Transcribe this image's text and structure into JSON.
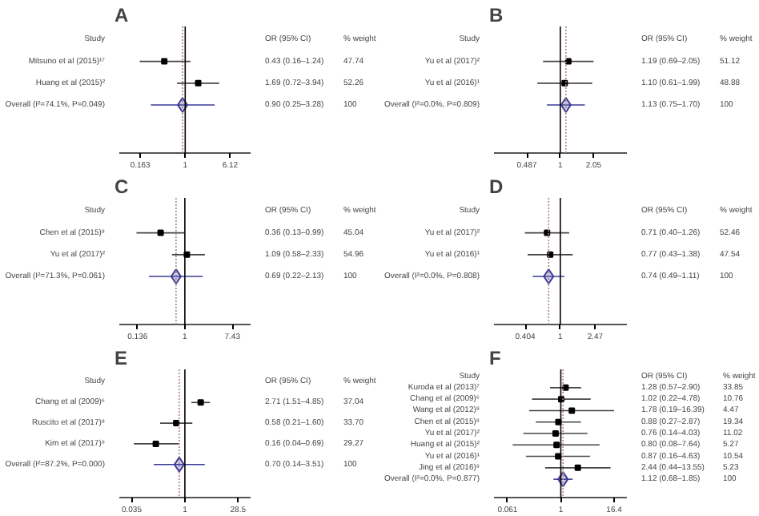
{
  "chart_data": [
    {
      "type": "scatter",
      "title": "A",
      "orientation": "horizontal",
      "log": "x",
      "xlim": [
        0.07,
        14
      ],
      "xticks": [
        0.163,
        1,
        6.12
      ],
      "categories": [
        "Mitsuno et al (2015)¹⁷",
        "Huang et al (2015)²",
        "Overall (I²=74.1%, P=0.049)"
      ],
      "series": [
        {
          "marker": "square",
          "color": "#000000",
          "values": [
            0.43,
            1.69,
            null
          ],
          "errors": [
            [
              0.16,
              1.24
            ],
            [
              0.72,
              3.94
            ],
            null
          ]
        },
        {
          "marker": "diamond",
          "color": "#3b3b98",
          "values": [
            null,
            null,
            0.9
          ],
          "errors": [
            null,
            null,
            [
              0.25,
              3.28
            ]
          ]
        }
      ],
      "ref_lines": [
        {
          "axis": "x",
          "value": 1,
          "color": "#000000",
          "line_style": "solid"
        },
        {
          "axis": "x",
          "value": 0.9,
          "color": "#b08080",
          "line_style": "dotted"
        }
      ],
      "annotations": [
        "Study",
        "OR (95% CI)",
        "% weight",
        "0.43 (0.16–1.24)",
        "1.69 (0.72–3.94)",
        "0.90 (0.25–3.28)",
        "47.74",
        "52.26",
        "100"
      ]
    },
    {
      "type": "scatter",
      "title": "B",
      "orientation": "horizontal",
      "log": "x",
      "xlim": [
        0.24,
        4.2
      ],
      "xticks": [
        0.487,
        1,
        2.05
      ],
      "categories": [
        "Yu et al (2017)²",
        "Yu et al (2016)¹",
        "Overall (I²=0.0%, P=0.809)"
      ],
      "series": [
        {
          "marker": "square",
          "color": "#000000",
          "values": [
            1.19,
            1.1,
            null
          ],
          "errors": [
            [
              0.69,
              2.05
            ],
            [
              0.61,
              1.99
            ],
            null
          ]
        },
        {
          "marker": "diamond",
          "color": "#3b3b98",
          "values": [
            null,
            null,
            1.13
          ],
          "errors": [
            null,
            null,
            [
              0.75,
              1.7
            ]
          ]
        }
      ],
      "ref_lines": [
        {
          "axis": "x",
          "value": 1,
          "color": "#000000",
          "line_style": "solid"
        },
        {
          "axis": "x",
          "value": 1.13,
          "color": "#b08080",
          "line_style": "dotted"
        }
      ],
      "annotations": [
        "Study",
        "OR (95% CI)",
        "% weight",
        "1.19 (0.69–2.05)",
        "1.10 (0.61–1.99)",
        "1.13 (0.75–1.70)",
        "51.12",
        "48.88",
        "100"
      ]
    },
    {
      "type": "scatter",
      "title": "C",
      "orientation": "horizontal",
      "log": "x",
      "xlim": [
        0.063,
        16
      ],
      "xticks": [
        0.136,
        1,
        7.43
      ],
      "categories": [
        "Chen et al (2015)⁸",
        "Yu et al (2017)²",
        "Overall (I²=71.3%, P=0.061)"
      ],
      "series": [
        {
          "marker": "square",
          "color": "#000000",
          "values": [
            0.36,
            1.09,
            null
          ],
          "errors": [
            [
              0.13,
              0.99
            ],
            [
              0.58,
              2.33
            ],
            null
          ]
        },
        {
          "marker": "diamond",
          "color": "#3b3b98",
          "values": [
            null,
            null,
            0.69
          ],
          "errors": [
            null,
            null,
            [
              0.22,
              2.13
            ]
          ]
        }
      ],
      "ref_lines": [
        {
          "axis": "x",
          "value": 1,
          "color": "#000000",
          "line_style": "solid"
        },
        {
          "axis": "x",
          "value": 0.69,
          "color": "#b08080",
          "line_style": "dotted"
        }
      ],
      "annotations": [
        "Study",
        "OR (95% CI)",
        "% weight",
        "0.36 (0.13–0.99)",
        "1.09 (0.58–2.33)",
        "0.69 (0.22–2.13)",
        "45.04",
        "54.96",
        "100"
      ]
    },
    {
      "type": "scatter",
      "title": "D",
      "orientation": "horizontal",
      "log": "x",
      "xlim": [
        0.18,
        5.6
      ],
      "xticks": [
        0.404,
        1,
        2.47
      ],
      "categories": [
        "Yu et al (2017)²",
        "Yu et al (2016)¹",
        "Overall (I²=0.0%, P=0.808)"
      ],
      "series": [
        {
          "marker": "square",
          "color": "#000000",
          "values": [
            0.71,
            0.77,
            null
          ],
          "errors": [
            [
              0.4,
              1.26
            ],
            [
              0.43,
              1.38
            ],
            null
          ]
        },
        {
          "marker": "diamond",
          "color": "#3b3b98",
          "values": [
            null,
            null,
            0.74
          ],
          "errors": [
            null,
            null,
            [
              0.49,
              1.11
            ]
          ]
        }
      ],
      "ref_lines": [
        {
          "axis": "x",
          "value": 1,
          "color": "#000000",
          "line_style": "solid"
        },
        {
          "axis": "x",
          "value": 0.74,
          "color": "#b08080",
          "line_style": "dotted"
        }
      ],
      "annotations": [
        "Study",
        "OR (95% CI)",
        "% weight",
        "0.71 (0.40–1.26)",
        "0.77 (0.43–1.38)",
        "0.74 (0.49–1.11)",
        "52.46",
        "47.54",
        "100"
      ]
    },
    {
      "type": "scatter",
      "title": "E",
      "orientation": "horizontal",
      "log": "x",
      "xlim": [
        0.016,
        63
      ],
      "xticks": [
        0.035,
        1,
        28.5
      ],
      "categories": [
        "Chang et al (2009)⁶",
        "Ruscito et al (2017)⁸",
        "Kim et al (2017)⁹",
        "Overall (I²=87.2%, P=0.000)"
      ],
      "series": [
        {
          "marker": "square",
          "color": "#000000",
          "values": [
            2.71,
            0.58,
            0.16,
            null
          ],
          "errors": [
            [
              1.51,
              4.85
            ],
            [
              0.21,
              1.6
            ],
            [
              0.04,
              0.69
            ],
            null
          ]
        },
        {
          "marker": "diamond",
          "color": "#3b3b98",
          "values": [
            null,
            null,
            null,
            0.7
          ],
          "errors": [
            null,
            null,
            null,
            [
              0.14,
              3.51
            ]
          ]
        }
      ],
      "ref_lines": [
        {
          "axis": "x",
          "value": 1,
          "color": "#000000",
          "line_style": "solid"
        },
        {
          "axis": "x",
          "value": 0.7,
          "color": "#b08080",
          "line_style": "dotted"
        }
      ],
      "annotations": [
        "Study",
        "OR (95% CI)",
        "% weight",
        "2.71 (1.51–4.85)",
        "0.58 (0.21–1.60)",
        "0.16 (0.04–0.69)",
        "0.70 (0.14–3.51)",
        "37.04",
        "33.70",
        "29.27",
        "100"
      ]
    },
    {
      "type": "scatter",
      "title": "F",
      "orientation": "horizontal",
      "log": "x",
      "xlim": [
        0.03,
        32
      ],
      "xticks": [
        0.061,
        1,
        16.4
      ],
      "categories": [
        "Kuroda et al (2013)⁷",
        "Chang et al (2009)⁶",
        "Wang et al (2012)⁸",
        "Chen et al (2015)⁸",
        "Yu et al (2017)²",
        "Huang et al (2015)²",
        "Yu et al (2016)¹",
        "Jing et al (2016)⁸",
        "Overall (I²=0.0%, P=0.877)"
      ],
      "series": [
        {
          "marker": "square",
          "color": "#000000",
          "values": [
            1.28,
            1.02,
            1.78,
            0.88,
            0.76,
            0.8,
            0.87,
            2.44,
            null
          ],
          "errors": [
            [
              0.57,
              2.9
            ],
            [
              0.22,
              4.78
            ],
            [
              0.19,
              16.39
            ],
            [
              0.27,
              2.87
            ],
            [
              0.14,
              4.03
            ],
            [
              0.08,
              7.64
            ],
            [
              0.16,
              4.63
            ],
            [
              0.44,
              13.55
            ],
            null
          ]
        },
        {
          "marker": "diamond",
          "color": "#3b3b98",
          "values": [
            null,
            null,
            null,
            null,
            null,
            null,
            null,
            null,
            1.12
          ],
          "errors": [
            null,
            null,
            null,
            null,
            null,
            null,
            null,
            null,
            [
              0.68,
              1.85
            ]
          ]
        }
      ],
      "ref_lines": [
        {
          "axis": "x",
          "value": 1,
          "color": "#000000",
          "line_style": "solid"
        },
        {
          "axis": "x",
          "value": 1.12,
          "color": "#b08080",
          "line_style": "dotted"
        }
      ],
      "annotations": [
        "Study",
        "OR (95% CI)",
        "% weight",
        "1.28 (0.57–2.90)",
        "1.02 (0.22–4.78)",
        "1.78 (0.19–16.39)",
        "0.88 (0.27–2.87)",
        "0.76 (0.14–4.03)",
        "0.80 (0.08–7.64)",
        "0.87 (0.16–4.63)",
        "2.44 (0.44–13.55)",
        "1.12 (0.68–1.85)",
        "33.85",
        "10.76",
        "4.47",
        "19.34",
        "11.02",
        "5.27",
        "10.54",
        "5.23",
        "100"
      ]
    }
  ]
}
